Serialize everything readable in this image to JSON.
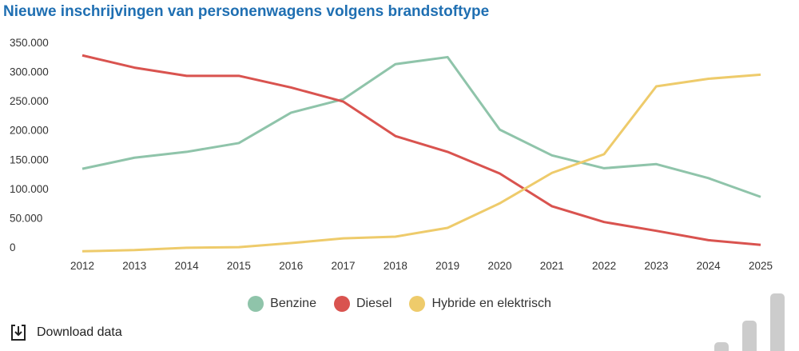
{
  "title": "Nieuwe inschrijvingen van personenwagens volgens brandstoftype",
  "download_label": "Download data",
  "chart_data": {
    "type": "line",
    "title": "Nieuwe inschrijvingen van personenwagens volgens brandstoftype",
    "x": [
      2012,
      2013,
      2014,
      2015,
      2016,
      2017,
      2018,
      2019,
      2020,
      2021,
      2022,
      2023,
      2024,
      2025
    ],
    "ylim": [
      0,
      350000
    ],
    "yticks": [
      "0",
      "50.000",
      "100.000",
      "150.000",
      "200.000",
      "250.000",
      "300.000",
      "350.000"
    ],
    "grid": false,
    "legend": "bottom",
    "series": [
      {
        "name": "Benzine",
        "color": "#8fc4aa",
        "values": [
          142000,
          161000,
          171000,
          186000,
          238000,
          261000,
          321000,
          333000,
          209000,
          165000,
          143000,
          150000,
          126000,
          94000
        ]
      },
      {
        "name": "Diesel",
        "color": "#d9534f",
        "values": [
          336000,
          315000,
          301000,
          301000,
          281000,
          257000,
          198000,
          171000,
          134000,
          78000,
          51000,
          36000,
          20000,
          12000
        ]
      },
      {
        "name": "Hybride en elektrisch",
        "color": "#eecb6b",
        "values": [
          1000,
          3000,
          7000,
          8000,
          15000,
          23000,
          26000,
          41000,
          83000,
          135000,
          167000,
          283000,
          296000,
          303000
        ]
      }
    ]
  }
}
